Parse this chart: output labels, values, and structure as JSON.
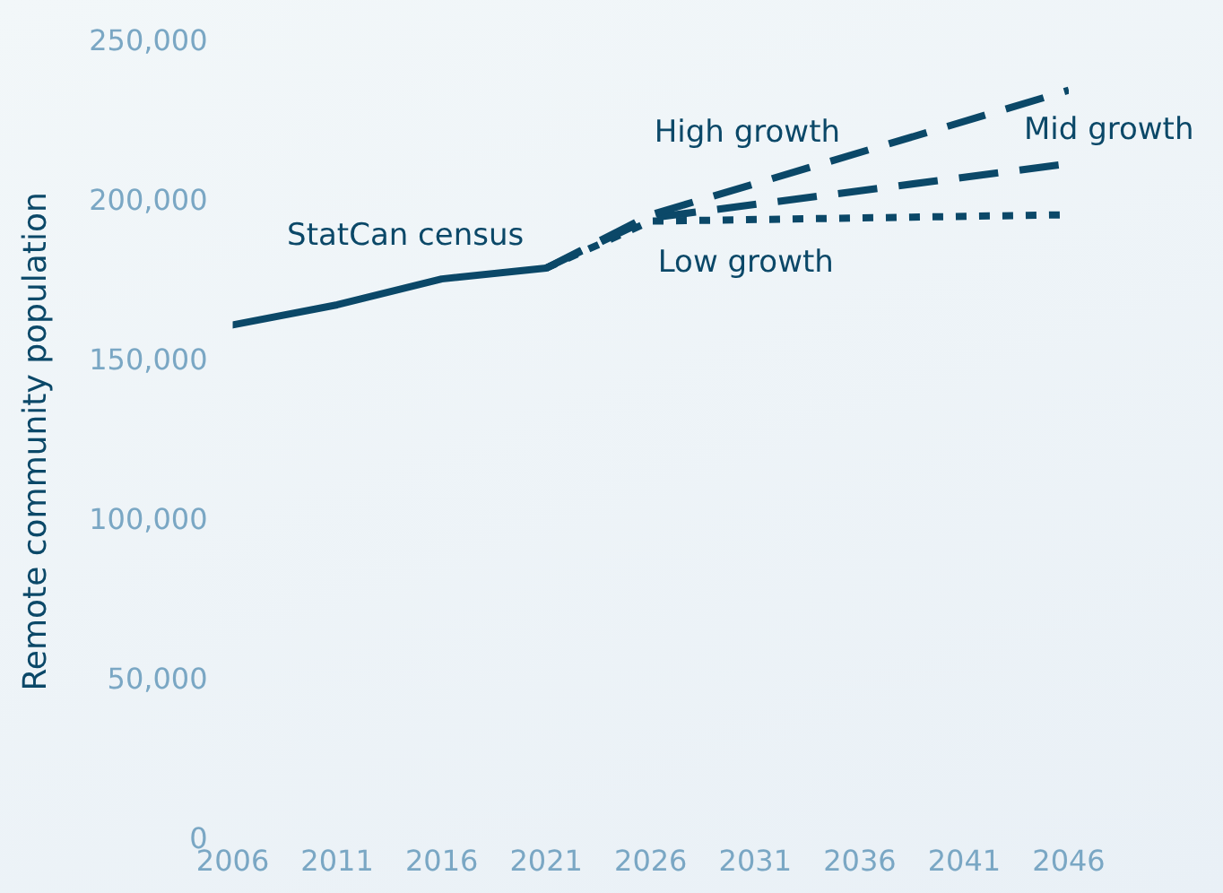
{
  "chart_data": {
    "type": "line",
    "ylabel": "Remote community population",
    "xlim": [
      2006,
      2046
    ],
    "xticks": [
      2006,
      2011,
      2016,
      2021,
      2026,
      2031,
      2036,
      2041,
      2046
    ],
    "ylim": [
      0,
      250000
    ],
    "yticks": [
      {
        "value": 0,
        "label": "0"
      },
      {
        "value": 50000,
        "label": "50,000"
      },
      {
        "value": 100000,
        "label": "100,000"
      },
      {
        "value": 150000,
        "label": "150,000"
      },
      {
        "value": 200000,
        "label": "200,000"
      },
      {
        "value": 250000,
        "label": "250,000"
      }
    ],
    "grid": false,
    "legend": false,
    "marker": "none",
    "series": [
      {
        "name": "StatCan census",
        "color": "#0b4868",
        "line_style": "solid",
        "x": [
          2006,
          2011,
          2016,
          2021
        ],
        "values": [
          161500,
          167800,
          175900,
          179300
        ]
      },
      {
        "name": "High growth",
        "color": "#0b4868",
        "line_style": "dashed",
        "x": [
          2021,
          2026,
          2046
        ],
        "values": [
          179300,
          196000,
          235000
        ]
      },
      {
        "name": "Mid growth",
        "color": "#0b4868",
        "line_style": "dashed",
        "x": [
          2021,
          2026,
          2046
        ],
        "values": [
          179300,
          195000,
          212000
        ]
      },
      {
        "name": "Low growth",
        "color": "#0b4868",
        "line_style": "dotted",
        "x": [
          2021,
          2026,
          2046
        ],
        "values": [
          179300,
          194000,
          196000
        ]
      }
    ]
  }
}
